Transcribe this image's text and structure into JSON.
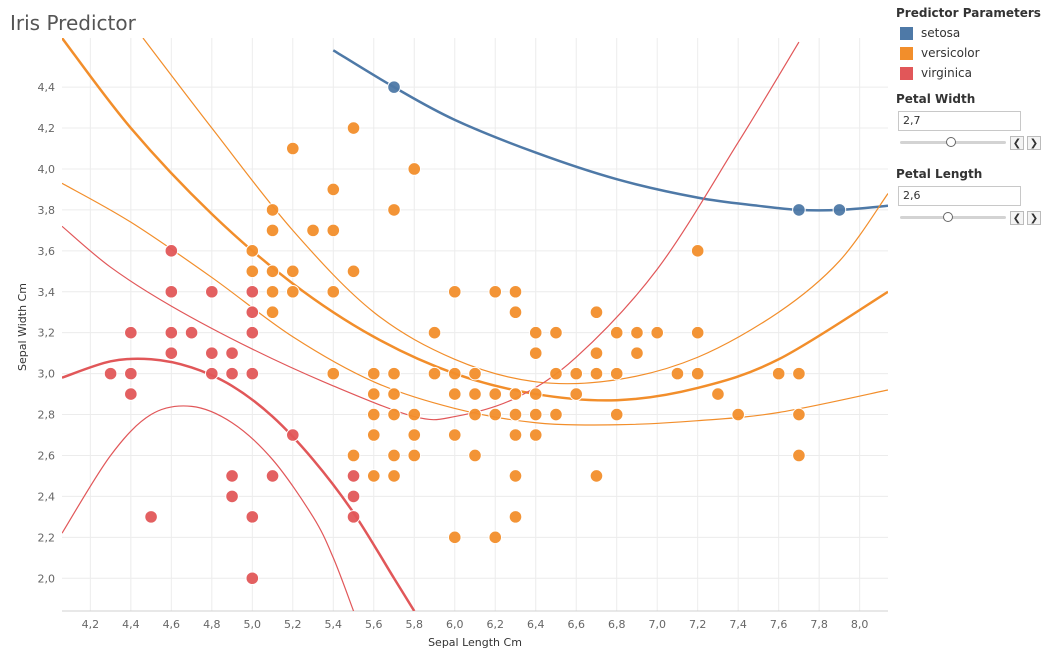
{
  "title": "Iris Predictor",
  "legend": {
    "title": "Predictor Parameters",
    "items": [
      {
        "label": "setosa",
        "color": "#4e79a7"
      },
      {
        "label": "versicolor",
        "color": "#f28e2b"
      },
      {
        "label": "virginica",
        "color": "#e15759"
      }
    ]
  },
  "params": {
    "petal_width": {
      "label": "Petal Width",
      "value": "2,7",
      "slider_fraction": 0.48
    },
    "petal_length": {
      "label": "Petal Length",
      "value": "2,6",
      "slider_fraction": 0.45
    },
    "prev_symbol": "❮",
    "next_symbol": "❯"
  },
  "chart_data": {
    "type": "scatter",
    "title": "Iris Predictor",
    "xlabel": "Sepal Length Cm",
    "ylabel": "Sepal Width Cm",
    "xlim": [
      4.06,
      8.14
    ],
    "ylim": [
      1.84,
      4.64
    ],
    "x_ticks": [
      "4,2",
      "4,4",
      "4,6",
      "4,8",
      "5,0",
      "5,2",
      "5,4",
      "5,6",
      "5,8",
      "6,0",
      "6,2",
      "6,4",
      "6,6",
      "6,8",
      "7,0",
      "7,2",
      "7,4",
      "7,6",
      "7,8",
      "8,0"
    ],
    "x_tick_values": [
      4.2,
      4.4,
      4.6,
      4.8,
      5.0,
      5.2,
      5.4,
      5.6,
      5.8,
      6.0,
      6.2,
      6.4,
      6.6,
      6.8,
      7.0,
      7.2,
      7.4,
      7.6,
      7.8,
      8.0
    ],
    "y_ticks": [
      "2,0",
      "2,2",
      "2,4",
      "2,6",
      "2,8",
      "3,0",
      "3,2",
      "3,4",
      "3,6",
      "3,8",
      "4,0",
      "4,2",
      "4,4"
    ],
    "y_tick_values": [
      2.0,
      2.2,
      2.4,
      2.6,
      2.8,
      3.0,
      3.2,
      3.4,
      3.6,
      3.8,
      4.0,
      4.2,
      4.4
    ],
    "grid": true,
    "series": [
      {
        "name": "setosa",
        "color": "#4e79a7",
        "points": [
          [
            5.7,
            4.4
          ],
          [
            7.7,
            3.8
          ],
          [
            7.9,
            3.8
          ]
        ]
      },
      {
        "name": "versicolor",
        "color": "#f28e2b",
        "points": [
          [
            5.2,
            4.1
          ],
          [
            5.5,
            4.2
          ],
          [
            5.8,
            4.0
          ],
          [
            5.4,
            3.9
          ],
          [
            5.1,
            3.8
          ],
          [
            5.7,
            3.8
          ],
          [
            5.1,
            3.7
          ],
          [
            5.3,
            3.7
          ],
          [
            5.4,
            3.7
          ],
          [
            5.0,
            3.6
          ],
          [
            7.2,
            3.6
          ],
          [
            5.0,
            3.5
          ],
          [
            5.1,
            3.5
          ],
          [
            5.2,
            3.5
          ],
          [
            5.5,
            3.5
          ],
          [
            5.1,
            3.4
          ],
          [
            5.2,
            3.4
          ],
          [
            5.4,
            3.4
          ],
          [
            6.0,
            3.4
          ],
          [
            6.2,
            3.4
          ],
          [
            6.3,
            3.4
          ],
          [
            5.1,
            3.3
          ],
          [
            6.3,
            3.3
          ],
          [
            6.7,
            3.3
          ],
          [
            5.9,
            3.2
          ],
          [
            6.4,
            3.2
          ],
          [
            6.5,
            3.2
          ],
          [
            6.8,
            3.2
          ],
          [
            6.9,
            3.2
          ],
          [
            7.0,
            3.2
          ],
          [
            7.2,
            3.2
          ],
          [
            6.4,
            3.1
          ],
          [
            6.7,
            3.1
          ],
          [
            6.9,
            3.1
          ],
          [
            5.4,
            3.0
          ],
          [
            5.6,
            3.0
          ],
          [
            5.7,
            3.0
          ],
          [
            5.9,
            3.0
          ],
          [
            6.0,
            3.0
          ],
          [
            6.1,
            3.0
          ],
          [
            6.5,
            3.0
          ],
          [
            6.6,
            3.0
          ],
          [
            6.7,
            3.0
          ],
          [
            6.8,
            3.0
          ],
          [
            7.1,
            3.0
          ],
          [
            7.2,
            3.0
          ],
          [
            7.6,
            3.0
          ],
          [
            7.7,
            3.0
          ],
          [
            5.6,
            2.9
          ],
          [
            5.7,
            2.9
          ],
          [
            6.0,
            2.9
          ],
          [
            6.1,
            2.9
          ],
          [
            6.2,
            2.9
          ],
          [
            6.3,
            2.9
          ],
          [
            6.4,
            2.9
          ],
          [
            6.6,
            2.9
          ],
          [
            7.3,
            2.9
          ],
          [
            5.6,
            2.8
          ],
          [
            5.7,
            2.8
          ],
          [
            5.8,
            2.8
          ],
          [
            6.1,
            2.8
          ],
          [
            6.2,
            2.8
          ],
          [
            6.3,
            2.8
          ],
          [
            6.4,
            2.8
          ],
          [
            6.5,
            2.8
          ],
          [
            6.8,
            2.8
          ],
          [
            7.4,
            2.8
          ],
          [
            7.7,
            2.8
          ],
          [
            5.6,
            2.7
          ],
          [
            5.8,
            2.7
          ],
          [
            6.0,
            2.7
          ],
          [
            6.3,
            2.7
          ],
          [
            6.4,
            2.7
          ],
          [
            5.5,
            2.6
          ],
          [
            5.7,
            2.6
          ],
          [
            5.8,
            2.6
          ],
          [
            6.1,
            2.6
          ],
          [
            7.7,
            2.6
          ],
          [
            5.6,
            2.5
          ],
          [
            5.7,
            2.5
          ],
          [
            6.3,
            2.5
          ],
          [
            6.7,
            2.5
          ],
          [
            6.3,
            2.3
          ],
          [
            6.0,
            2.2
          ],
          [
            6.2,
            2.2
          ]
        ]
      },
      {
        "name": "virginica",
        "color": "#e15759",
        "points": [
          [
            4.6,
            3.6
          ],
          [
            4.6,
            3.4
          ],
          [
            4.8,
            3.4
          ],
          [
            5.0,
            3.4
          ],
          [
            5.0,
            3.3
          ],
          [
            4.4,
            3.2
          ],
          [
            4.6,
            3.2
          ],
          [
            4.7,
            3.2
          ],
          [
            5.0,
            3.2
          ],
          [
            4.6,
            3.1
          ],
          [
            4.8,
            3.1
          ],
          [
            4.9,
            3.1
          ],
          [
            4.3,
            3.0
          ],
          [
            4.4,
            3.0
          ],
          [
            4.8,
            3.0
          ],
          [
            4.9,
            3.0
          ],
          [
            5.0,
            3.0
          ],
          [
            4.4,
            2.9
          ],
          [
            5.2,
            2.7
          ],
          [
            4.9,
            2.5
          ],
          [
            5.1,
            2.5
          ],
          [
            5.5,
            2.5
          ],
          [
            4.9,
            2.4
          ],
          [
            5.5,
            2.4
          ],
          [
            4.5,
            2.3
          ],
          [
            5.0,
            2.3
          ],
          [
            5.5,
            2.3
          ],
          [
            5.0,
            2.0
          ]
        ]
      }
    ],
    "curves": [
      {
        "name": "setosa",
        "color": "#4e79a7",
        "width": 2.5,
        "points": [
          [
            5.4,
            4.58
          ],
          [
            5.7,
            4.4
          ],
          [
            6.0,
            4.24
          ],
          [
            6.4,
            4.08
          ],
          [
            6.8,
            3.95
          ],
          [
            7.2,
            3.86
          ],
          [
            7.5,
            3.82
          ],
          [
            7.7,
            3.8
          ],
          [
            7.9,
            3.8
          ],
          [
            8.14,
            3.82
          ]
        ]
      },
      {
        "name": "versicolor-fit",
        "color": "#f28e2b",
        "width": 2.5,
        "points": [
          [
            4.06,
            4.64
          ],
          [
            4.4,
            4.2
          ],
          [
            4.8,
            3.78
          ],
          [
            5.2,
            3.44
          ],
          [
            5.6,
            3.18
          ],
          [
            6.0,
            3.0
          ],
          [
            6.4,
            2.9
          ],
          [
            6.8,
            2.87
          ],
          [
            7.2,
            2.93
          ],
          [
            7.6,
            3.07
          ],
          [
            8.14,
            3.4
          ]
        ]
      },
      {
        "name": "versicolor-upper",
        "color": "#f28e2b",
        "width": 1.2,
        "points": [
          [
            4.46,
            4.64
          ],
          [
            4.8,
            4.2
          ],
          [
            5.2,
            3.7
          ],
          [
            5.6,
            3.3
          ],
          [
            6.0,
            3.07
          ],
          [
            6.4,
            2.96
          ],
          [
            6.8,
            2.97
          ],
          [
            7.2,
            3.08
          ],
          [
            7.6,
            3.3
          ],
          [
            7.9,
            3.55
          ],
          [
            8.14,
            3.88
          ]
        ]
      },
      {
        "name": "versicolor-lower",
        "color": "#f28e2b",
        "width": 1.2,
        "points": [
          [
            4.06,
            3.93
          ],
          [
            4.4,
            3.74
          ],
          [
            4.8,
            3.47
          ],
          [
            5.2,
            3.18
          ],
          [
            5.6,
            2.96
          ],
          [
            6.0,
            2.83
          ],
          [
            6.4,
            2.76
          ],
          [
            6.8,
            2.75
          ],
          [
            7.2,
            2.77
          ],
          [
            7.6,
            2.81
          ],
          [
            8.14,
            2.92
          ]
        ]
      },
      {
        "name": "virginica-fit",
        "color": "#e15759",
        "width": 2.5,
        "points": [
          [
            4.06,
            2.98
          ],
          [
            4.3,
            3.06
          ],
          [
            4.5,
            3.07
          ],
          [
            4.7,
            3.03
          ],
          [
            4.9,
            2.94
          ],
          [
            5.1,
            2.79
          ],
          [
            5.3,
            2.58
          ],
          [
            5.5,
            2.32
          ],
          [
            5.7,
            2.0
          ],
          [
            5.8,
            1.84
          ]
        ]
      },
      {
        "name": "virginica-upper",
        "color": "#e15759",
        "width": 1.2,
        "points": [
          [
            4.06,
            3.72
          ],
          [
            4.3,
            3.52
          ],
          [
            4.6,
            3.33
          ],
          [
            5.0,
            3.12
          ],
          [
            5.4,
            2.94
          ],
          [
            5.8,
            2.79
          ],
          [
            6.0,
            2.79
          ],
          [
            6.3,
            2.88
          ],
          [
            6.6,
            3.08
          ],
          [
            7.0,
            3.51
          ],
          [
            7.4,
            4.13
          ],
          [
            7.7,
            4.62
          ]
        ]
      },
      {
        "name": "virginica-lower",
        "color": "#e15759",
        "width": 1.2,
        "points": [
          [
            4.06,
            2.22
          ],
          [
            4.3,
            2.6
          ],
          [
            4.5,
            2.8
          ],
          [
            4.7,
            2.84
          ],
          [
            4.9,
            2.76
          ],
          [
            5.1,
            2.58
          ],
          [
            5.3,
            2.3
          ],
          [
            5.4,
            2.1
          ],
          [
            5.5,
            1.84
          ]
        ]
      }
    ]
  }
}
